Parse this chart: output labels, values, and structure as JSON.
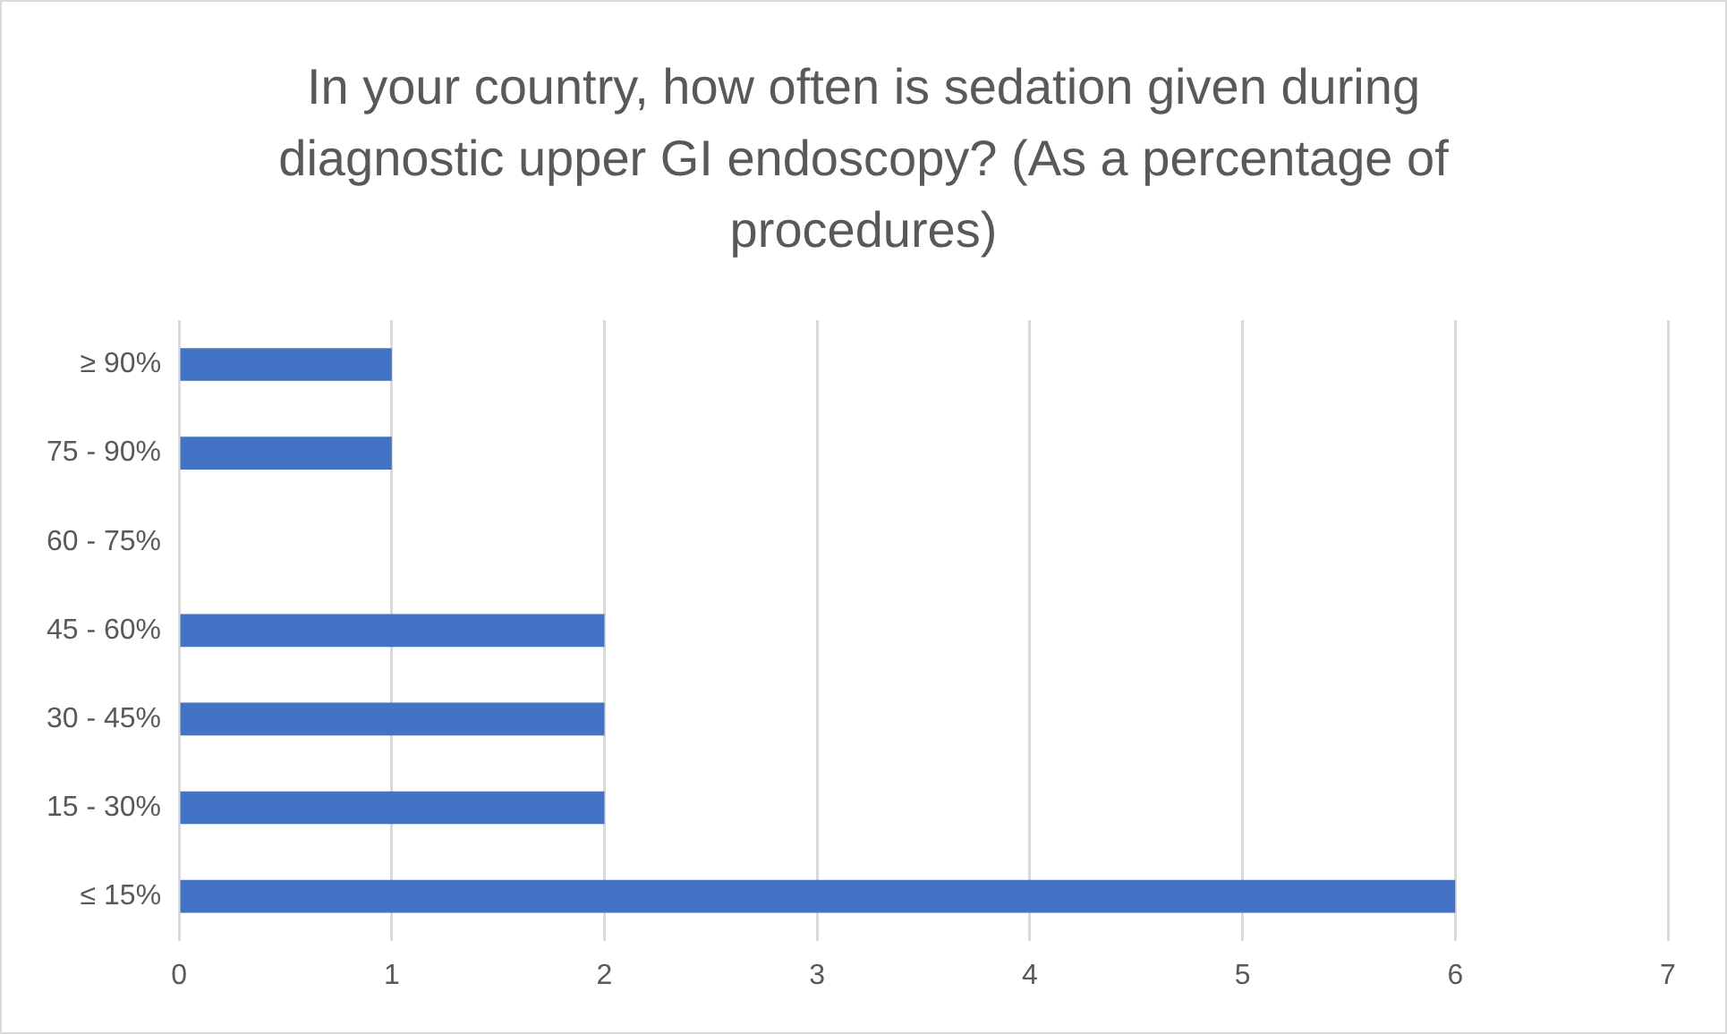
{
  "chart_data": {
    "type": "bar",
    "orientation": "horizontal",
    "title": "In your country, how often is sedation given during diagnostic upper GI endoscopy? (As a percentage of procedures)",
    "categories": [
      "≥ 90%",
      "75 - 90%",
      "60 - 75%",
      "45 - 60%",
      "30 - 45%",
      "15 - 30%",
      "≤ 15%"
    ],
    "values": [
      1,
      1,
      0,
      2,
      2,
      2,
      6
    ],
    "color": "#4472c4",
    "xlim": [
      0,
      7
    ],
    "xticks": [
      0,
      1,
      2,
      3,
      4,
      5,
      6,
      7
    ],
    "grid": "x",
    "legend": false
  }
}
